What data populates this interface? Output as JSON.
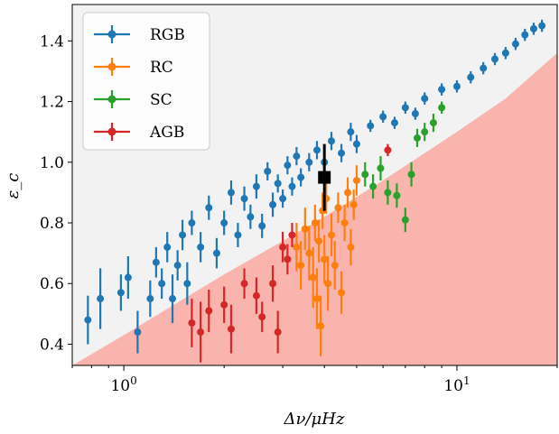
{
  "chart_data": {
    "type": "scatter",
    "xlabel": "Δν/μHz",
    "ylabel": "ε_c",
    "xscale": "log",
    "xlim": [
      0.7,
      20
    ],
    "ylim": [
      0.33,
      1.52
    ],
    "x_tick_labels": [
      "10^0",
      "10^1"
    ],
    "x_ticks": [
      1,
      10
    ],
    "y_ticks": [
      0.4,
      0.6,
      0.8,
      1.0,
      1.2,
      1.4
    ],
    "y_tick_labels": [
      "0.4",
      "0.6",
      "0.8",
      "1.0",
      "1.2",
      "1.4"
    ],
    "grid": false,
    "legend_position": "top-left",
    "background_color": "#f2f2f2",
    "forbidden_region_color": "#f8b4ad",
    "forbidden_boundary": {
      "x": [
        0.7,
        1.0,
        2.0,
        3.0,
        4.0,
        6.0,
        8.0,
        10.0,
        14.0,
        20.0
      ],
      "y": [
        0.33,
        0.43,
        0.63,
        0.74,
        0.82,
        0.94,
        1.03,
        1.1,
        1.21,
        1.36
      ]
    },
    "series": [
      {
        "name": "RGB",
        "color": "#1f77b4",
        "points": [
          {
            "x": 0.78,
            "y": 0.48,
            "e": 0.08
          },
          {
            "x": 0.85,
            "y": 0.55,
            "e": 0.1
          },
          {
            "x": 0.98,
            "y": 0.57,
            "e": 0.06
          },
          {
            "x": 1.03,
            "y": 0.62,
            "e": 0.07
          },
          {
            "x": 1.1,
            "y": 0.44,
            "e": 0.07
          },
          {
            "x": 1.2,
            "y": 0.55,
            "e": 0.06
          },
          {
            "x": 1.25,
            "y": 0.67,
            "e": 0.05
          },
          {
            "x": 1.3,
            "y": 0.6,
            "e": 0.05
          },
          {
            "x": 1.35,
            "y": 0.72,
            "e": 0.05
          },
          {
            "x": 1.4,
            "y": 0.55,
            "e": 0.08
          },
          {
            "x": 1.45,
            "y": 0.66,
            "e": 0.05
          },
          {
            "x": 1.5,
            "y": 0.76,
            "e": 0.05
          },
          {
            "x": 1.55,
            "y": 0.6,
            "e": 0.07
          },
          {
            "x": 1.6,
            "y": 0.8,
            "e": 0.04
          },
          {
            "x": 1.7,
            "y": 0.72,
            "e": 0.05
          },
          {
            "x": 1.8,
            "y": 0.85,
            "e": 0.04
          },
          {
            "x": 1.9,
            "y": 0.7,
            "e": 0.05
          },
          {
            "x": 2.0,
            "y": 0.8,
            "e": 0.04
          },
          {
            "x": 2.1,
            "y": 0.9,
            "e": 0.04
          },
          {
            "x": 2.2,
            "y": 0.76,
            "e": 0.04
          },
          {
            "x": 2.3,
            "y": 0.88,
            "e": 0.04
          },
          {
            "x": 2.4,
            "y": 0.82,
            "e": 0.04
          },
          {
            "x": 2.5,
            "y": 0.92,
            "e": 0.04
          },
          {
            "x": 2.6,
            "y": 0.79,
            "e": 0.04
          },
          {
            "x": 2.7,
            "y": 0.97,
            "e": 0.03
          },
          {
            "x": 2.8,
            "y": 0.86,
            "e": 0.04
          },
          {
            "x": 2.9,
            "y": 0.93,
            "e": 0.03
          },
          {
            "x": 3.0,
            "y": 0.88,
            "e": 0.03
          },
          {
            "x": 3.1,
            "y": 0.99,
            "e": 0.03
          },
          {
            "x": 3.2,
            "y": 0.92,
            "e": 0.03
          },
          {
            "x": 3.3,
            "y": 1.02,
            "e": 0.03
          },
          {
            "x": 3.4,
            "y": 0.95,
            "e": 0.03
          },
          {
            "x": 3.6,
            "y": 1.0,
            "e": 0.03
          },
          {
            "x": 3.8,
            "y": 1.04,
            "e": 0.03
          },
          {
            "x": 4.0,
            "y": 1.0,
            "e": 0.03
          },
          {
            "x": 4.2,
            "y": 1.07,
            "e": 0.03
          },
          {
            "x": 4.5,
            "y": 1.03,
            "e": 0.03
          },
          {
            "x": 4.8,
            "y": 1.1,
            "e": 0.03
          },
          {
            "x": 5.0,
            "y": 1.06,
            "e": 0.03
          },
          {
            "x": 5.5,
            "y": 1.12,
            "e": 0.02
          },
          {
            "x": 6.0,
            "y": 1.15,
            "e": 0.02
          },
          {
            "x": 6.5,
            "y": 1.13,
            "e": 0.02
          },
          {
            "x": 7.0,
            "y": 1.18,
            "e": 0.02
          },
          {
            "x": 7.5,
            "y": 1.16,
            "e": 0.02
          },
          {
            "x": 8.0,
            "y": 1.21,
            "e": 0.02
          },
          {
            "x": 9.0,
            "y": 1.24,
            "e": 0.02
          },
          {
            "x": 10.0,
            "y": 1.25,
            "e": 0.02
          },
          {
            "x": 11.0,
            "y": 1.28,
            "e": 0.02
          },
          {
            "x": 12.0,
            "y": 1.31,
            "e": 0.02
          },
          {
            "x": 13.0,
            "y": 1.34,
            "e": 0.02
          },
          {
            "x": 14.0,
            "y": 1.36,
            "e": 0.02
          },
          {
            "x": 15.0,
            "y": 1.39,
            "e": 0.02
          },
          {
            "x": 16.0,
            "y": 1.42,
            "e": 0.02
          },
          {
            "x": 17.0,
            "y": 1.44,
            "e": 0.02
          },
          {
            "x": 18.0,
            "y": 1.45,
            "e": 0.02
          }
        ]
      },
      {
        "name": "RC",
        "color": "#ff7f0e",
        "points": [
          {
            "x": 3.3,
            "y": 0.72,
            "e": 0.08
          },
          {
            "x": 3.4,
            "y": 0.66,
            "e": 0.08
          },
          {
            "x": 3.5,
            "y": 0.78,
            "e": 0.07
          },
          {
            "x": 3.6,
            "y": 0.7,
            "e": 0.09
          },
          {
            "x": 3.7,
            "y": 0.62,
            "e": 0.1
          },
          {
            "x": 3.75,
            "y": 0.8,
            "e": 0.06
          },
          {
            "x": 3.8,
            "y": 0.55,
            "e": 0.1
          },
          {
            "x": 3.85,
            "y": 0.74,
            "e": 0.07
          },
          {
            "x": 3.9,
            "y": 0.46,
            "e": 0.1
          },
          {
            "x": 3.95,
            "y": 0.84,
            "e": 0.06
          },
          {
            "x": 4.0,
            "y": 0.68,
            "e": 0.08
          },
          {
            "x": 4.05,
            "y": 0.88,
            "e": 0.05
          },
          {
            "x": 4.1,
            "y": 0.6,
            "e": 0.09
          },
          {
            "x": 4.2,
            "y": 0.76,
            "e": 0.07
          },
          {
            "x": 4.3,
            "y": 0.66,
            "e": 0.08
          },
          {
            "x": 4.4,
            "y": 0.85,
            "e": 0.05
          },
          {
            "x": 4.5,
            "y": 0.57,
            "e": 0.07
          },
          {
            "x": 4.6,
            "y": 0.8,
            "e": 0.06
          },
          {
            "x": 4.7,
            "y": 0.9,
            "e": 0.05
          },
          {
            "x": 4.8,
            "y": 0.72,
            "e": 0.06
          },
          {
            "x": 4.9,
            "y": 0.86,
            "e": 0.05
          },
          {
            "x": 5.0,
            "y": 0.94,
            "e": 0.05
          }
        ]
      },
      {
        "name": "SC",
        "color": "#2ca02c",
        "points": [
          {
            "x": 5.3,
            "y": 0.96,
            "e": 0.04
          },
          {
            "x": 5.6,
            "y": 0.92,
            "e": 0.04
          },
          {
            "x": 5.9,
            "y": 0.98,
            "e": 0.04
          },
          {
            "x": 6.2,
            "y": 0.9,
            "e": 0.04
          },
          {
            "x": 6.6,
            "y": 0.89,
            "e": 0.04
          },
          {
            "x": 7.0,
            "y": 0.81,
            "e": 0.04
          },
          {
            "x": 7.3,
            "y": 0.96,
            "e": 0.04
          },
          {
            "x": 7.6,
            "y": 1.08,
            "e": 0.03
          },
          {
            "x": 8.0,
            "y": 1.1,
            "e": 0.03
          },
          {
            "x": 8.5,
            "y": 1.13,
            "e": 0.03
          },
          {
            "x": 9.0,
            "y": 1.18,
            "e": 0.02
          }
        ]
      },
      {
        "name": "AGB",
        "color": "#d62728",
        "points": [
          {
            "x": 1.6,
            "y": 0.47,
            "e": 0.08
          },
          {
            "x": 1.7,
            "y": 0.44,
            "e": 0.1
          },
          {
            "x": 1.8,
            "y": 0.51,
            "e": 0.07
          },
          {
            "x": 2.0,
            "y": 0.53,
            "e": 0.06
          },
          {
            "x": 2.1,
            "y": 0.45,
            "e": 0.08
          },
          {
            "x": 2.3,
            "y": 0.6,
            "e": 0.05
          },
          {
            "x": 2.5,
            "y": 0.56,
            "e": 0.06
          },
          {
            "x": 2.6,
            "y": 0.49,
            "e": 0.05
          },
          {
            "x": 2.8,
            "y": 0.6,
            "e": 0.06
          },
          {
            "x": 2.9,
            "y": 0.44,
            "e": 0.07
          },
          {
            "x": 3.0,
            "y": 0.72,
            "e": 0.05
          },
          {
            "x": 3.1,
            "y": 0.68,
            "e": 0.05
          },
          {
            "x": 3.2,
            "y": 0.76,
            "e": 0.04
          },
          {
            "x": 6.2,
            "y": 1.04,
            "e": 0.02
          }
        ]
      }
    ],
    "highlight_point": {
      "x": 4.0,
      "y": 0.95,
      "yerr": 0.11,
      "color": "#000000"
    }
  }
}
